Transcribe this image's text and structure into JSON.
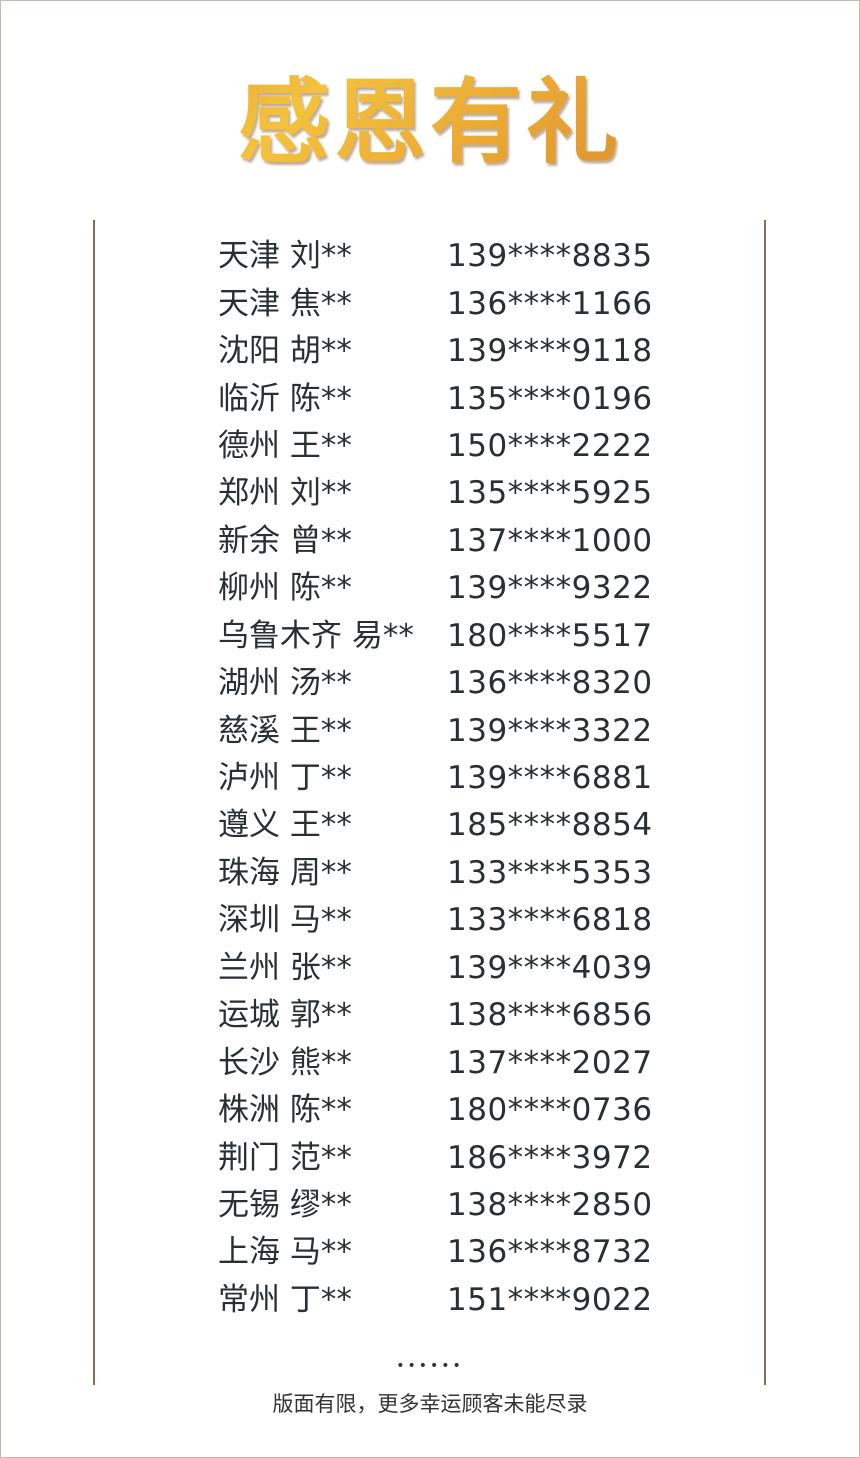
{
  "title": "感恩有礼",
  "winners": [
    {
      "name": "天津 刘**",
      "phone": "139****8835"
    },
    {
      "name": "天津 焦**",
      "phone": "136****1166"
    },
    {
      "name": "沈阳 胡**",
      "phone": "139****9118"
    },
    {
      "name": "临沂 陈**",
      "phone": "135****0196"
    },
    {
      "name": "德州 王**",
      "phone": "150****2222"
    },
    {
      "name": "郑州 刘**",
      "phone": "135****5925"
    },
    {
      "name": "新余 曾**",
      "phone": "137****1000"
    },
    {
      "name": "柳州 陈**",
      "phone": "139****9322"
    },
    {
      "name": "乌鲁木齐 易**",
      "phone": "180****5517"
    },
    {
      "name": "湖州 汤**",
      "phone": "136****8320"
    },
    {
      "name": "慈溪 王**",
      "phone": "139****3322"
    },
    {
      "name": "泸州 丁**",
      "phone": "139****6881"
    },
    {
      "name": "遵义 王**",
      "phone": "185****8854"
    },
    {
      "name": "珠海 周**",
      "phone": "133****5353"
    },
    {
      "name": "深圳 马**",
      "phone": "133****6818"
    },
    {
      "name": "兰州 张**",
      "phone": "139****4039"
    },
    {
      "name": "运城 郭**",
      "phone": "138****6856"
    },
    {
      "name": "长沙 熊**",
      "phone": "137****2027"
    },
    {
      "name": "株洲 陈**",
      "phone": "180****0736"
    },
    {
      "name": "荆门 范**",
      "phone": "186****3972"
    },
    {
      "name": "无锡 缪**",
      "phone": "138****2850"
    },
    {
      "name": "上海 马**",
      "phone": "136****8732"
    },
    {
      "name": "常州 丁**",
      "phone": "151****9022"
    }
  ],
  "ellipsis": "••••••",
  "footer_note": "版面有限，更多幸运顾客未能尽录",
  "colors": {
    "title_gold": "#f0b535",
    "line": "#8a6a55",
    "text": "#2a2f33"
  }
}
